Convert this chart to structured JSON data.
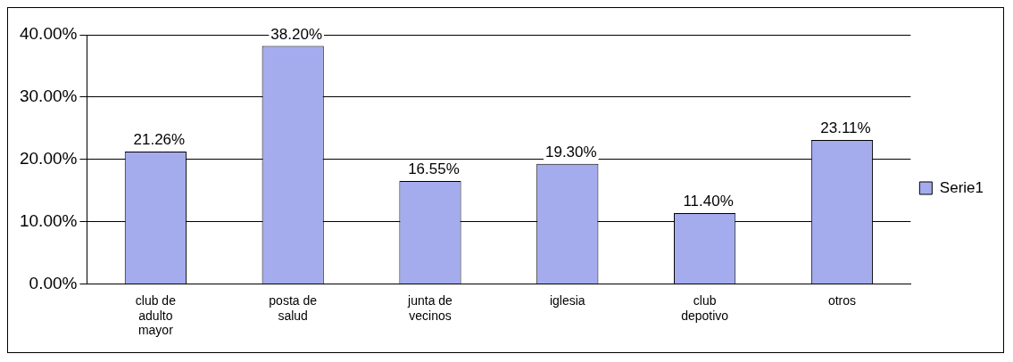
{
  "chart_data": {
    "type": "bar",
    "categories": [
      "club de adulto mayor",
      "posta de salud",
      "junta de vecinos",
      "iglesia",
      "club depotivo",
      "otros"
    ],
    "series": [
      {
        "name": "Serie1",
        "color": "#a4acee",
        "values": [
          21.26,
          38.2,
          16.55,
          19.3,
          11.4,
          23.11
        ],
        "value_labels": [
          "21.26%",
          "38.20%",
          "16.55%",
          "19.30%",
          "11.40%",
          "23.11%"
        ]
      }
    ],
    "ylim": [
      0,
      40
    ],
    "yticks": [
      {
        "value": 0,
        "label": "0.00%"
      },
      {
        "value": 10,
        "label": "10.00%"
      },
      {
        "value": 20,
        "label": "20.00%"
      },
      {
        "value": 30,
        "label": "30.00%"
      },
      {
        "value": 40,
        "label": "40.00%"
      }
    ],
    "grid": "y",
    "legend": "right"
  }
}
